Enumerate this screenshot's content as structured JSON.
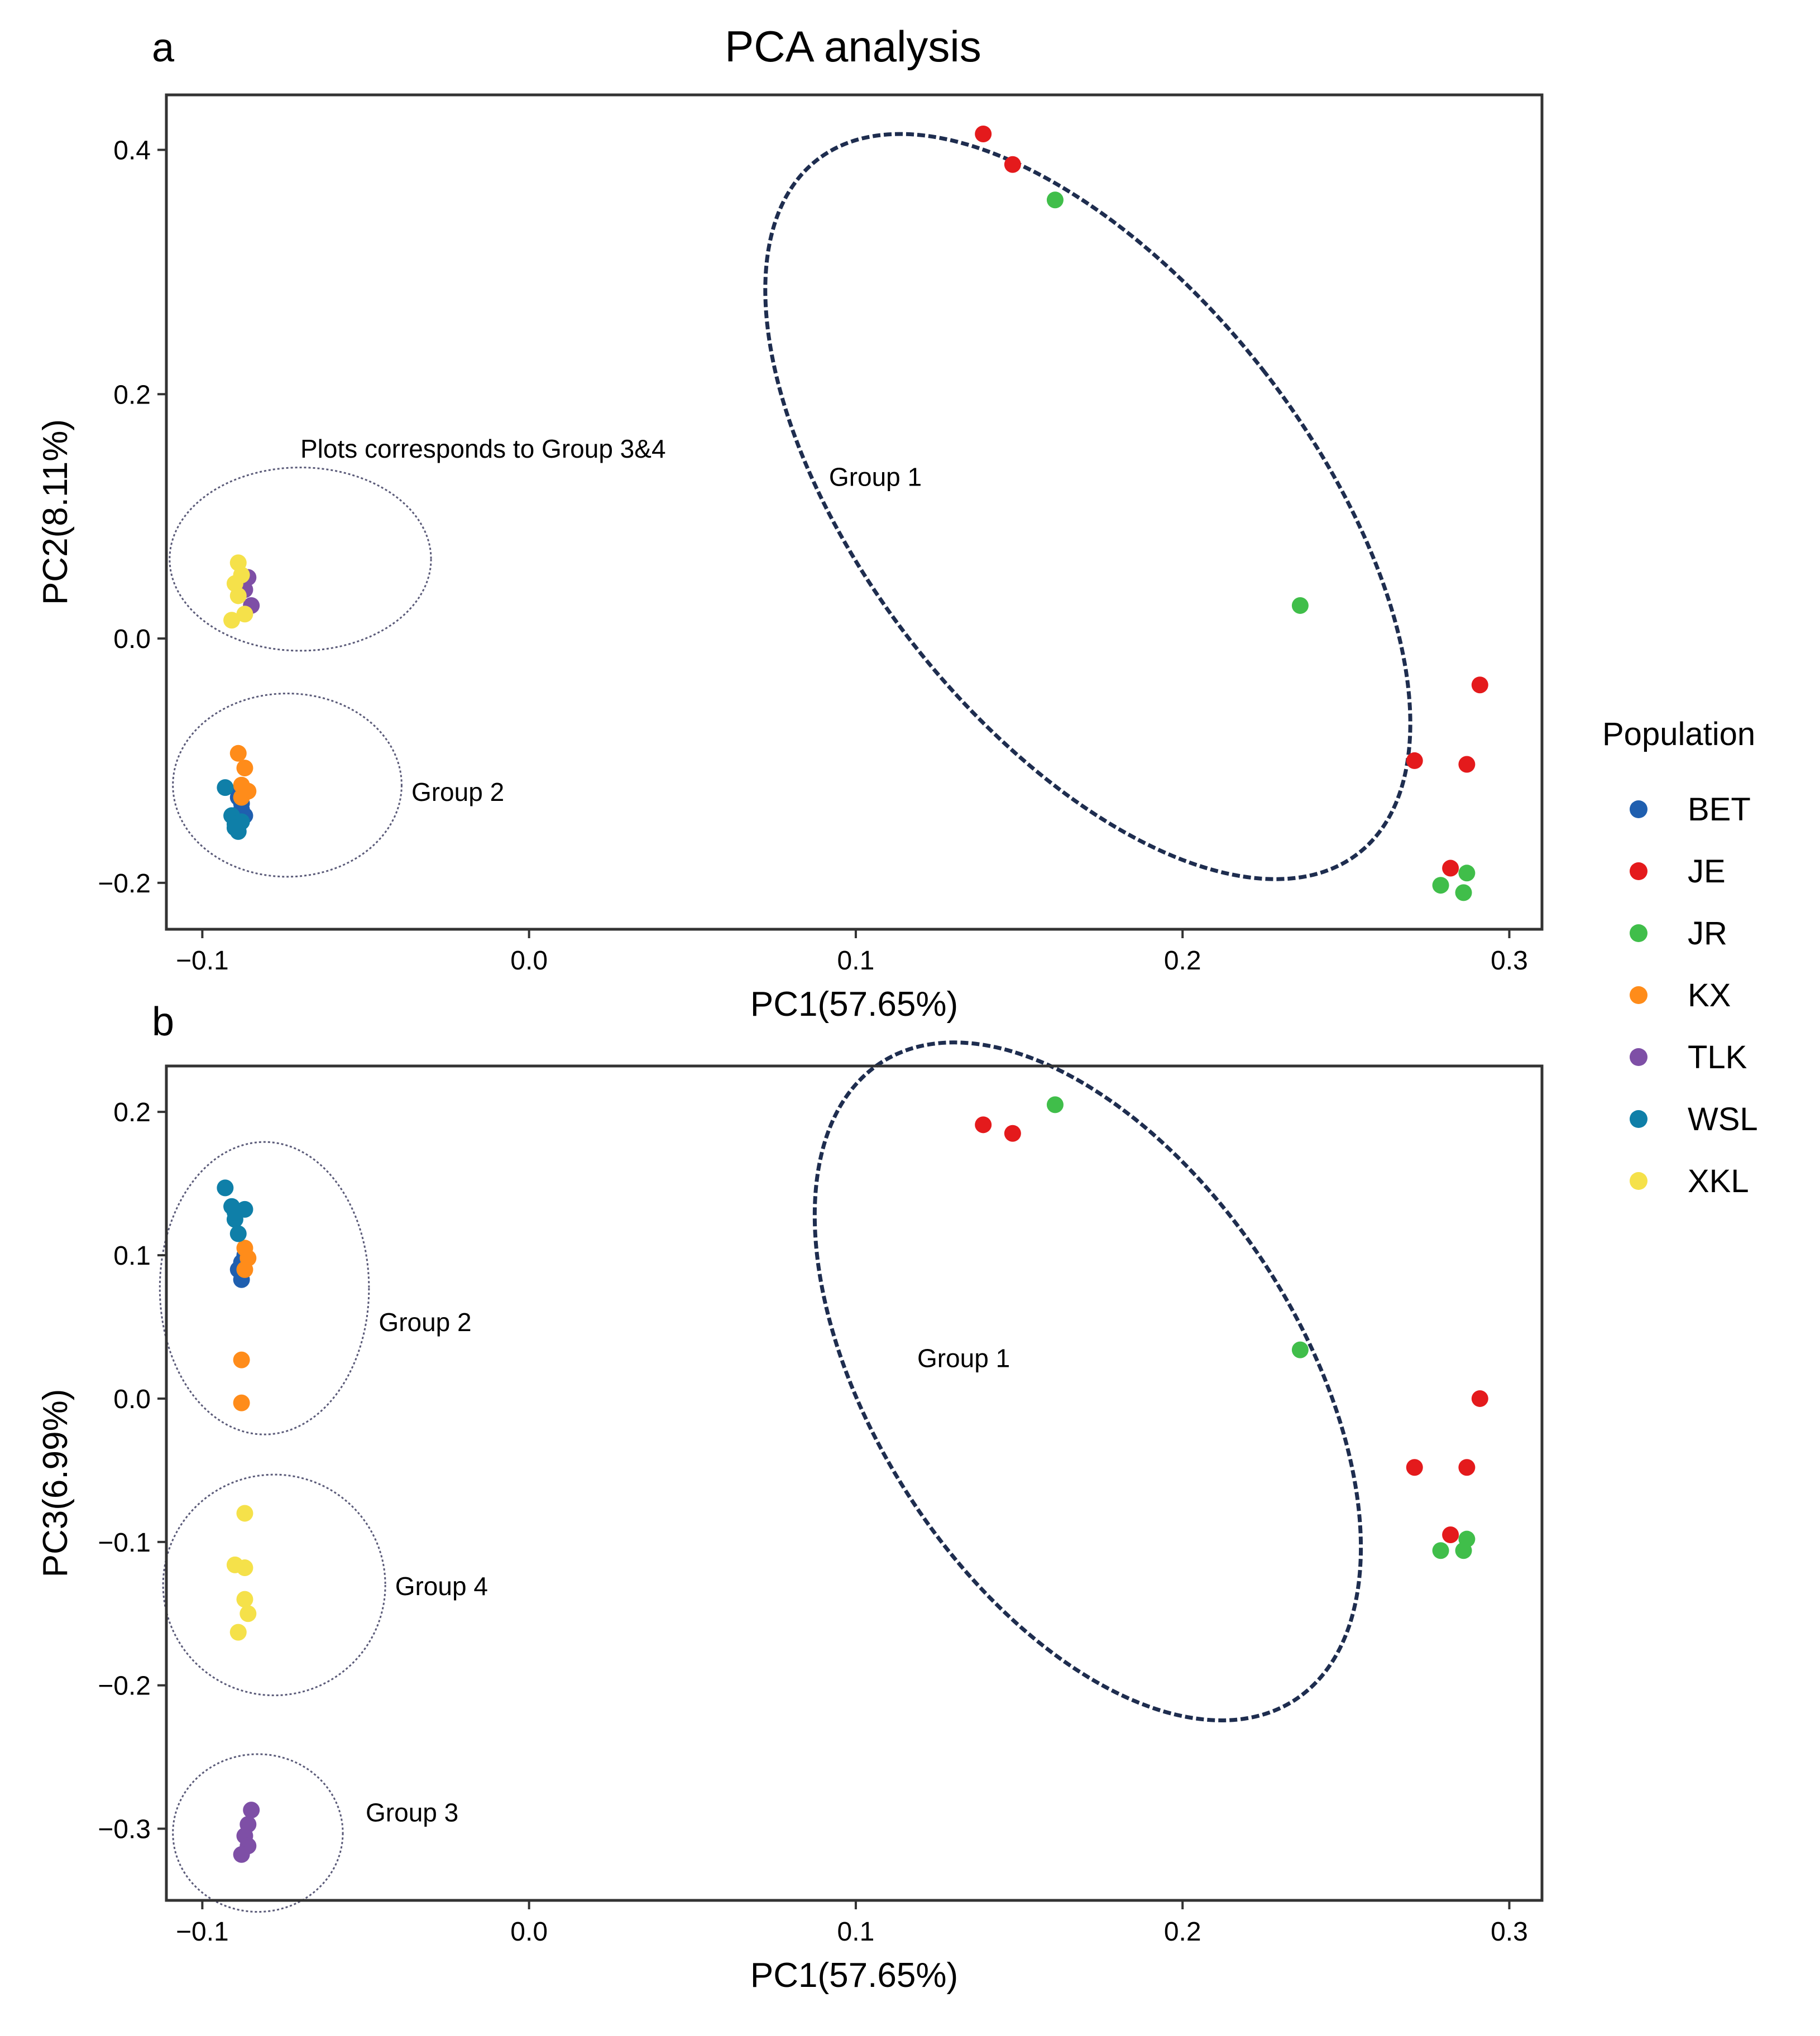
{
  "title": "PCA analysis",
  "colors": {
    "BET": "#1F5FAF",
    "JE": "#E41A1C",
    "JR": "#40BE4A",
    "KX": "#FF8C1A",
    "TLK": "#7E4FA6",
    "WSL": "#0F7FA8",
    "XKL": "#F5E14A",
    "ellipse_main": "#1E2D4F",
    "ellipse_small": "#5A5A78"
  },
  "legend": {
    "title": "Population",
    "items": [
      "BET",
      "JE",
      "JR",
      "KX",
      "TLK",
      "WSL",
      "XKL"
    ]
  },
  "chart_data": [
    {
      "type": "scatter",
      "panel_label": "a",
      "xlabel": "PC1(57.65%)",
      "ylabel": "PC2(8.11%)",
      "xlim": [
        -0.111,
        0.31
      ],
      "ylim": [
        -0.238,
        0.445
      ],
      "xticks": [
        -0.1,
        0.0,
        0.1,
        0.2,
        0.3
      ],
      "xtick_labels": [
        "−0.1",
        "0.0",
        "0.1",
        "0.2",
        "0.3"
      ],
      "yticks": [
        -0.2,
        0.0,
        0.2,
        0.4
      ],
      "ytick_labels": [
        "−0.2",
        "0.0",
        "0.2",
        "0.4"
      ],
      "grid": false,
      "legend_position": "right",
      "series": [
        {
          "name": "BET",
          "x": [
            -0.089,
            -0.088,
            -0.087,
            -0.088,
            -0.089
          ],
          "y": [
            -0.125,
            -0.135,
            -0.145,
            -0.14,
            -0.13
          ]
        },
        {
          "name": "JE",
          "x": [
            0.139,
            0.148,
            0.271,
            0.287,
            0.291,
            0.282
          ],
          "y": [
            0.413,
            0.388,
            -0.1,
            -0.103,
            -0.038,
            -0.188
          ]
        },
        {
          "name": "JR",
          "x": [
            0.161,
            0.236,
            0.279,
            0.286,
            0.287
          ],
          "y": [
            0.359,
            0.027,
            -0.202,
            -0.208,
            -0.192
          ]
        },
        {
          "name": "KX",
          "x": [
            -0.089,
            -0.087,
            -0.088,
            -0.086,
            -0.088
          ],
          "y": [
            -0.094,
            -0.106,
            -0.12,
            -0.125,
            -0.13
          ]
        },
        {
          "name": "TLK",
          "x": [
            -0.086,
            -0.085,
            -0.087
          ],
          "y": [
            0.05,
            0.027,
            0.04
          ]
        },
        {
          "name": "WSL",
          "x": [
            -0.093,
            -0.091,
            -0.09,
            -0.089,
            -0.088,
            -0.09
          ],
          "y": [
            -0.122,
            -0.145,
            -0.152,
            -0.158,
            -0.15,
            -0.155
          ]
        },
        {
          "name": "XKL",
          "x": [
            -0.089,
            -0.088,
            -0.09,
            -0.089,
            -0.087,
            -0.091
          ],
          "y": [
            0.062,
            0.052,
            0.045,
            0.035,
            0.02,
            0.015
          ]
        }
      ],
      "ellipses": [
        {
          "style": "main",
          "cx": 0.171,
          "cy": 0.108,
          "rx": 0.068,
          "ry": 0.36,
          "angle": -38
        },
        {
          "style": "small",
          "cx": -0.07,
          "cy": 0.065,
          "rx": 0.04,
          "ry": 0.075,
          "angle": 0
        },
        {
          "style": "small",
          "cx": -0.074,
          "cy": -0.12,
          "rx": 0.035,
          "ry": 0.075,
          "angle": 0
        }
      ],
      "annotations": [
        {
          "text": "Plots corresponds to Group 3&4",
          "x": -0.07,
          "y": 0.148,
          "anchor": "start",
          "x_text": -0.07
        },
        {
          "text": "Group 1",
          "x": 0.106,
          "y": 0.125,
          "anchor": "middle"
        },
        {
          "text": "Group 2",
          "x": -0.036,
          "y": -0.133,
          "anchor": "start"
        }
      ]
    },
    {
      "type": "scatter",
      "panel_label": "b",
      "xlabel": "PC1(57.65%)",
      "ylabel": "PC3(6.99%)",
      "xlim": [
        -0.111,
        0.31
      ],
      "ylim": [
        -0.35,
        0.232
      ],
      "xticks": [
        -0.1,
        0.0,
        0.1,
        0.2,
        0.3
      ],
      "xtick_labels": [
        "−0.1",
        "0.0",
        "0.1",
        "0.2",
        "0.3"
      ],
      "yticks": [
        -0.3,
        -0.2,
        -0.1,
        0.0,
        0.1,
        0.2
      ],
      "ytick_labels": [
        "−0.3",
        "−0.2",
        "−0.1",
        "0.0",
        "0.1",
        "0.2"
      ],
      "grid": false,
      "legend_position": "right",
      "series": [
        {
          "name": "BET",
          "x": [
            -0.088,
            -0.089,
            -0.087,
            -0.088
          ],
          "y": [
            0.083,
            0.09,
            0.1,
            0.095
          ]
        },
        {
          "name": "JE",
          "x": [
            0.139,
            0.148,
            0.271,
            0.287,
            0.291,
            0.282
          ],
          "y": [
            0.191,
            0.185,
            -0.048,
            -0.048,
            0.0,
            -0.095
          ]
        },
        {
          "name": "JR",
          "x": [
            0.161,
            0.236,
            0.279,
            0.286,
            0.287
          ],
          "y": [
            0.205,
            0.034,
            -0.106,
            -0.106,
            -0.098
          ]
        },
        {
          "name": "KX",
          "x": [
            -0.087,
            -0.086,
            -0.087,
            -0.088,
            -0.088
          ],
          "y": [
            0.105,
            0.098,
            0.09,
            0.027,
            -0.003
          ]
        },
        {
          "name": "TLK",
          "x": [
            -0.085,
            -0.086,
            -0.087,
            -0.086,
            -0.088
          ],
          "y": [
            -0.287,
            -0.297,
            -0.305,
            -0.312,
            -0.318
          ]
        },
        {
          "name": "WSL",
          "x": [
            -0.093,
            -0.091,
            -0.09,
            -0.089,
            -0.087,
            -0.09
          ],
          "y": [
            0.147,
            0.134,
            0.125,
            0.115,
            0.132,
            0.13
          ]
        },
        {
          "name": "XKL",
          "x": [
            -0.087,
            -0.09,
            -0.087,
            -0.087,
            -0.086,
            -0.089
          ],
          "y": [
            -0.08,
            -0.116,
            -0.118,
            -0.14,
            -0.15,
            -0.163
          ]
        }
      ],
      "ellipses": [
        {
          "style": "main",
          "cx": 0.171,
          "cy": 0.012,
          "rx": 0.065,
          "ry": 0.265,
          "angle": -33
        },
        {
          "style": "small",
          "cx": -0.081,
          "cy": 0.077,
          "rx": 0.032,
          "ry": 0.102,
          "angle": 0
        },
        {
          "style": "small",
          "cx": -0.078,
          "cy": -0.13,
          "rx": 0.034,
          "ry": 0.077,
          "angle": 0
        },
        {
          "style": "small",
          "cx": -0.083,
          "cy": -0.303,
          "rx": 0.026,
          "ry": 0.055,
          "angle": 0
        }
      ],
      "annotations": [
        {
          "text": "Group 1",
          "x": 0.133,
          "y": 0.022,
          "anchor": "middle"
        },
        {
          "text": "Group 2",
          "x": -0.046,
          "y": 0.047,
          "anchor": "start"
        },
        {
          "text": "Group 4",
          "x": -0.041,
          "y": -0.137,
          "anchor": "start"
        },
        {
          "text": "Group 3",
          "x": -0.05,
          "y": -0.295,
          "anchor": "start"
        }
      ]
    }
  ]
}
